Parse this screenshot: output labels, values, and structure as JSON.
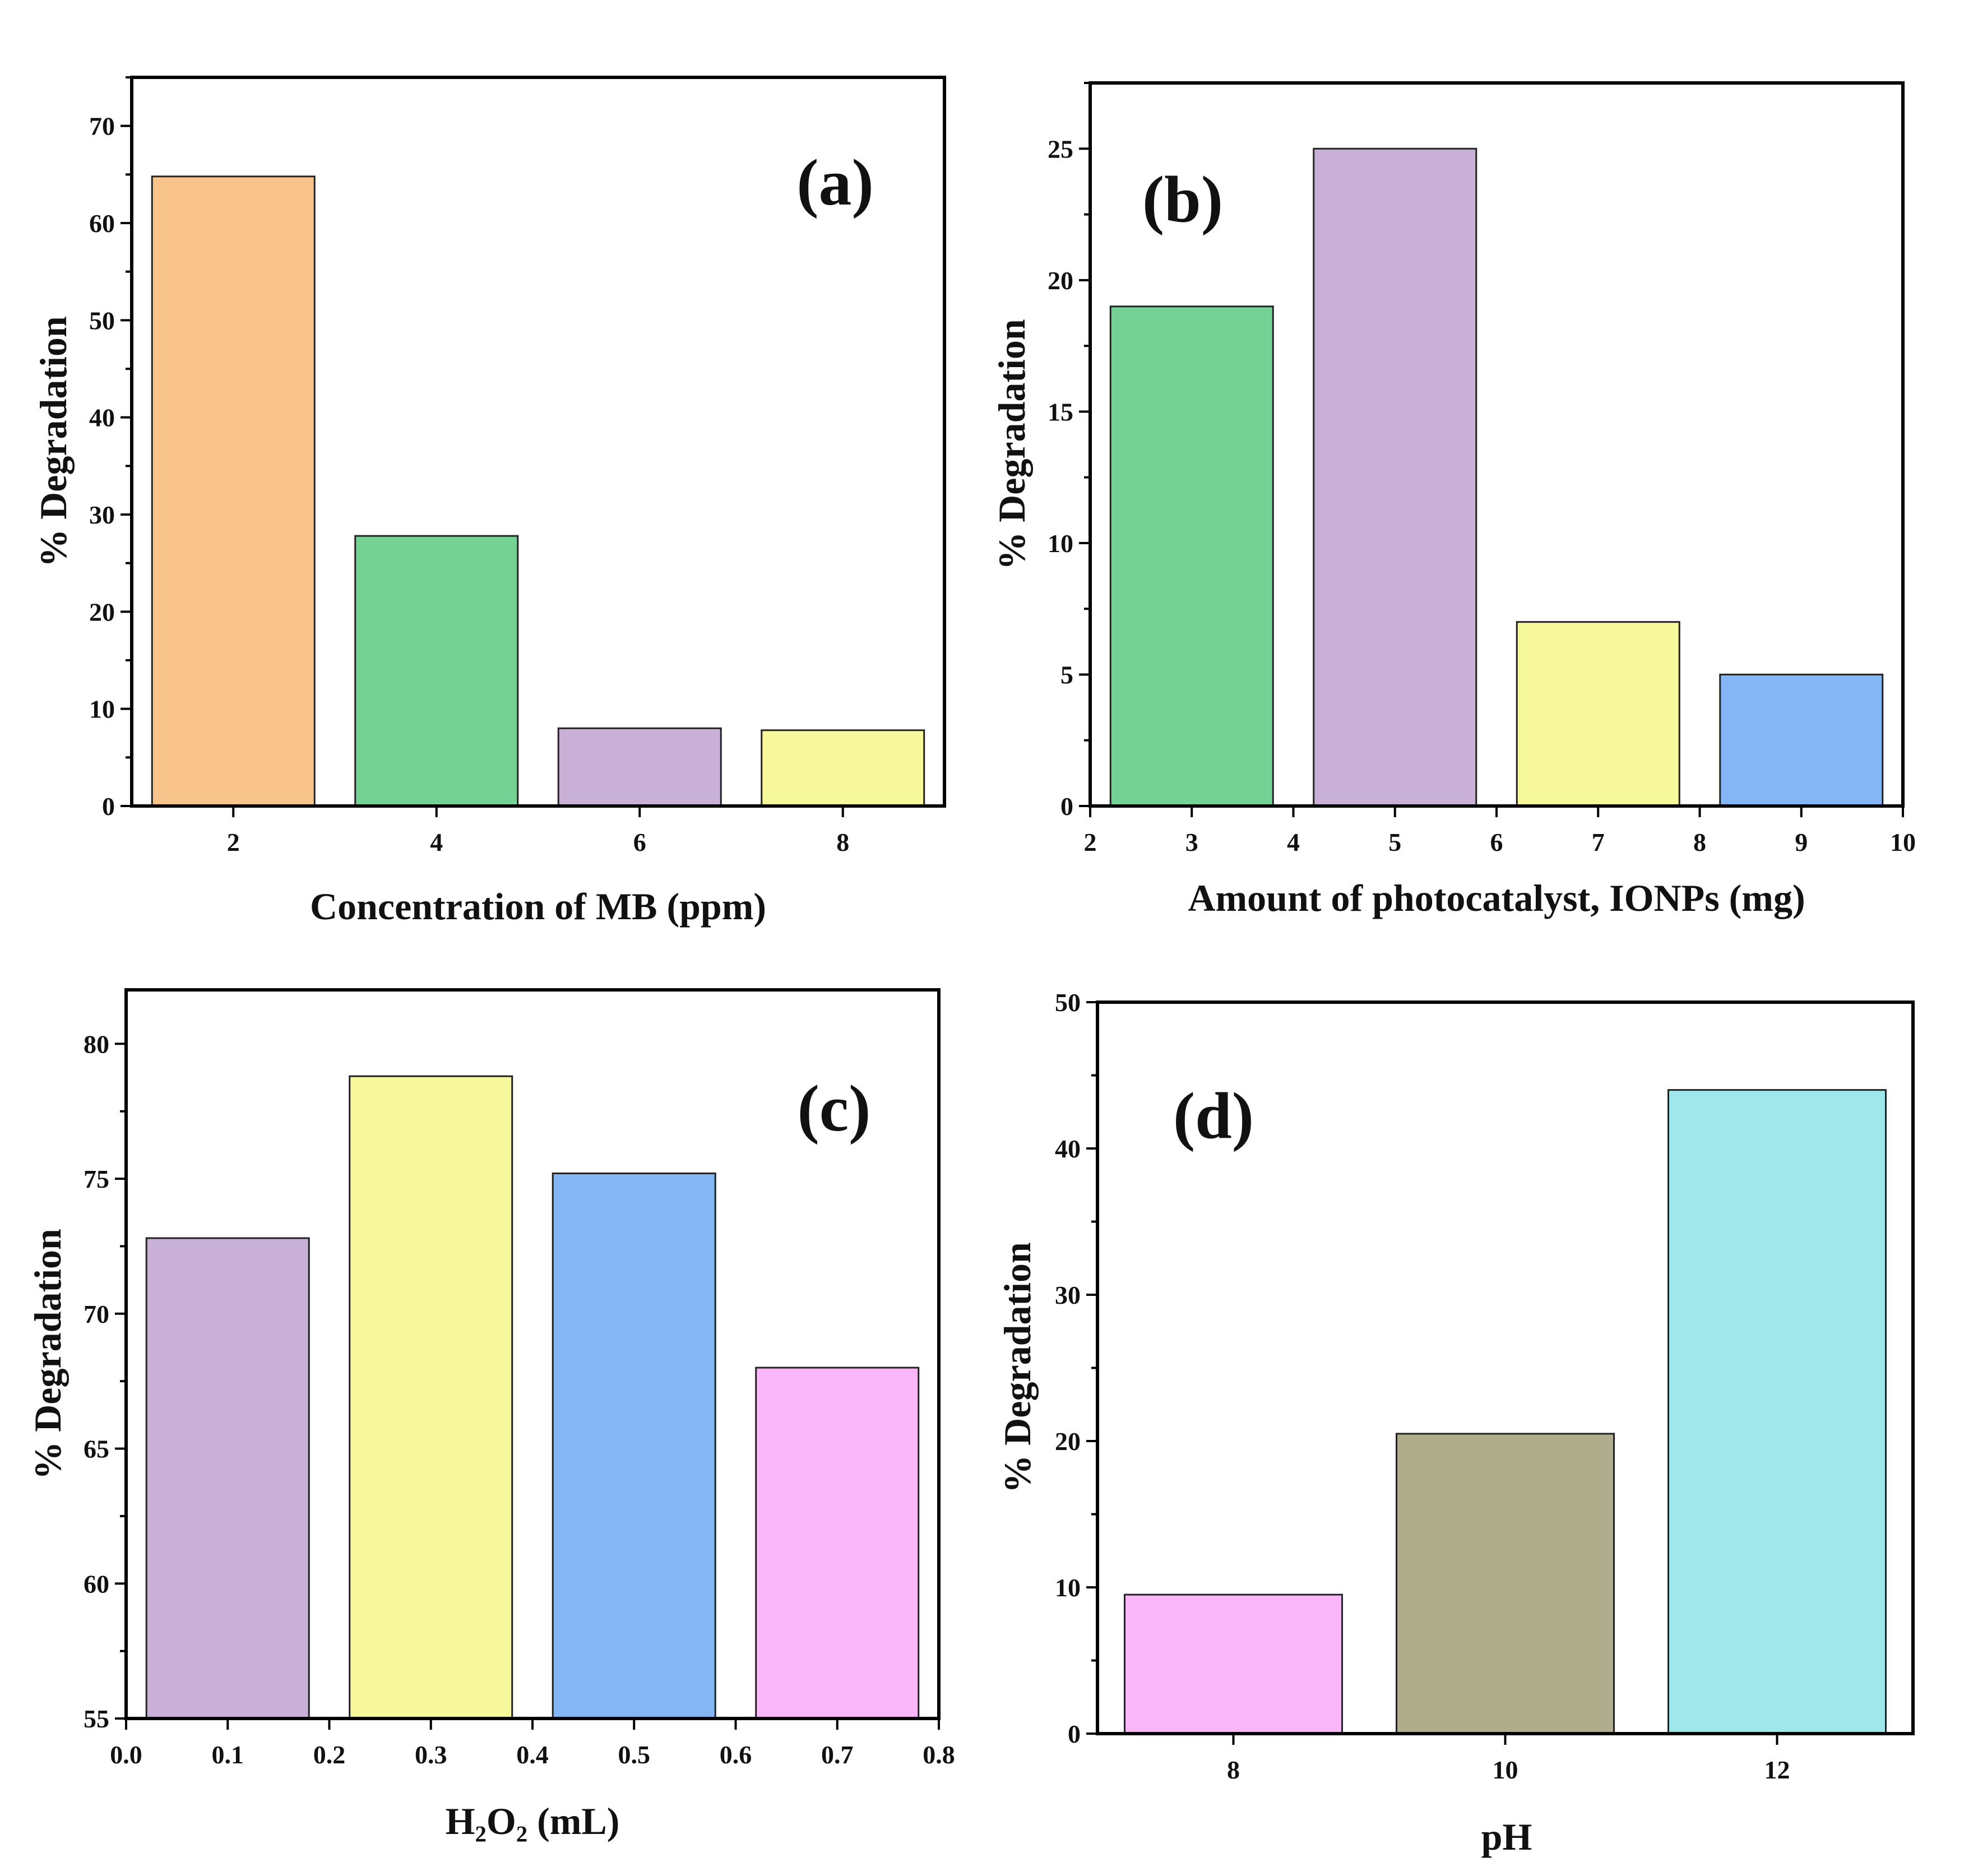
{
  "panels": [
    {
      "panel_label": "(a)",
      "chart_data": {
        "type": "bar",
        "categories": [
          "2",
          "4",
          "6",
          "8"
        ],
        "x": [
          2,
          4,
          6,
          8
        ],
        "values": [
          64.8,
          27.8,
          8.0,
          7.8
        ],
        "bar_colors": [
          "#f8c48c",
          "#74d394",
          "#c9b0d6",
          "#f7f79b"
        ],
        "xlabel": "Concentration of MB (ppm)",
        "ylabel": "% Degradation",
        "xlim": [
          1,
          9
        ],
        "ylim": [
          0,
          75
        ],
        "xticks": [
          2,
          4,
          6,
          8
        ],
        "yticks": [
          0,
          10,
          20,
          30,
          40,
          50,
          60,
          70
        ],
        "bar_width": 1.6,
        "grid": false
      }
    },
    {
      "panel_label": "(b)",
      "chart_data": {
        "type": "bar",
        "categories": [
          "3",
          "5",
          "7",
          "9"
        ],
        "x": [
          3,
          5,
          7,
          9
        ],
        "values": [
          19,
          25,
          7,
          5
        ],
        "bar_colors": [
          "#74d394",
          "#c9b0d6",
          "#f7f79b",
          "#84b6f5"
        ],
        "xlabel": "Amount of photocatalyst, IONPs (mg)",
        "ylabel": "% Degradation",
        "xlim": [
          2,
          10
        ],
        "ylim": [
          0,
          27.5
        ],
        "xticks": [
          2,
          3,
          4,
          5,
          6,
          7,
          8,
          9,
          10
        ],
        "yticks": [
          0,
          5,
          10,
          15,
          20,
          25
        ],
        "bar_width": 1.6,
        "grid": false
      }
    },
    {
      "panel_label": "(c)",
      "chart_data": {
        "type": "bar",
        "categories": [
          "0.1",
          "0.3",
          "0.5",
          "0.7"
        ],
        "x": [
          0.1,
          0.3,
          0.5,
          0.7
        ],
        "values": [
          72.8,
          78.8,
          75.2,
          68.0
        ],
        "bar_colors": [
          "#c9b0d6",
          "#f7f79b",
          "#84b6f5",
          "#f9b6f9"
        ],
        "xlabel": "H₂O₂ (mL)",
        "ylabel": "% Degradation",
        "xlim": [
          0.0,
          0.8
        ],
        "ylim": [
          55,
          82
        ],
        "xticks": [
          "0.0",
          "0.1",
          "0.2",
          "0.3",
          "0.4",
          "0.5",
          "0.6",
          "0.7",
          "0.8"
        ],
        "yticks": [
          55,
          60,
          65,
          70,
          75,
          80
        ],
        "bar_width": 0.16,
        "grid": false
      }
    },
    {
      "panel_label": "(d)",
      "chart_data": {
        "type": "bar",
        "categories": [
          "8",
          "10",
          "12"
        ],
        "x": [
          8,
          10,
          12
        ],
        "values": [
          9.5,
          20.5,
          44.0
        ],
        "bar_colors": [
          "#f9b6f9",
          "#afad8b",
          "#a0e7ec"
        ],
        "xlabel": "pH",
        "ylabel": "% Degradation",
        "xlim": [
          7,
          13
        ],
        "ylim": [
          0,
          50
        ],
        "xticks": [
          8,
          10,
          12
        ],
        "yticks": [
          0,
          10,
          20,
          30,
          40,
          50
        ],
        "bar_width": 1.6,
        "grid": false
      }
    }
  ]
}
